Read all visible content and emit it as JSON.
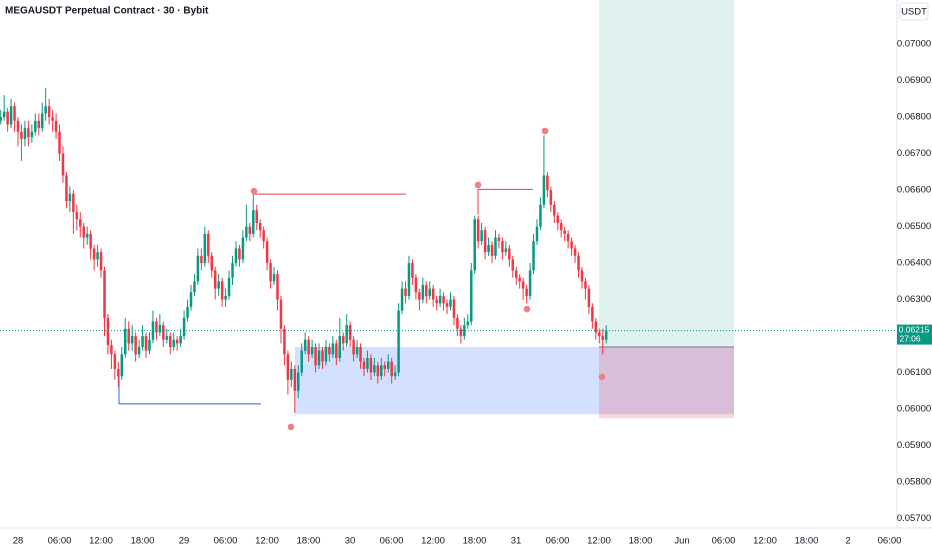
{
  "chart_data": {
    "type": "candlestick",
    "title": "MEGAUSDT Perpetual Contract · 30 · Bybit",
    "currency": "USDT",
    "countdown": "27:06",
    "last_price": 0.06215,
    "up_color": "#089981",
    "down_color": "#f23645",
    "ylim": [
      0.05674,
      0.07121
    ],
    "yticks": [
      {
        "value": 0.07,
        "label": "0.07000"
      },
      {
        "value": 0.069,
        "label": "0.06900"
      },
      {
        "value": 0.068,
        "label": "0.06800"
      },
      {
        "value": 0.067,
        "label": "0.06700"
      },
      {
        "value": 0.066,
        "label": "0.06600"
      },
      {
        "value": 0.065,
        "label": "0.06500"
      },
      {
        "value": 0.064,
        "label": "0.06400"
      },
      {
        "value": 0.063,
        "label": "0.06300"
      },
      {
        "value": 0.062,
        "label": "0.06200"
      },
      {
        "value": 0.061,
        "label": "0.06100"
      },
      {
        "value": 0.06,
        "label": "0.06000"
      },
      {
        "value": 0.059,
        "label": "0.05900"
      },
      {
        "value": 0.058,
        "label": "0.05800"
      },
      {
        "value": 0.057,
        "label": "0.05700"
      }
    ],
    "x_labels": [
      "28",
      "06:00",
      "12:00",
      "18:00",
      "29",
      "06:00",
      "12:00",
      "18:00",
      "30",
      "06:00",
      "12:00",
      "18:00",
      "31",
      "06:00",
      "12:00",
      "18:00",
      "Jun",
      "06:00",
      "12:00",
      "18:00",
      "2",
      "06:00"
    ],
    "zones": [
      {
        "name": "demand",
        "color": "#2962ff",
        "low": 0.05986,
        "high": 0.0617
      },
      {
        "name": "target",
        "color": "#089981",
        "low": 0.0617,
        "high": 0.07121
      },
      {
        "name": "stop",
        "color": "#f23645",
        "low": 0.05975,
        "high": 0.0617
      }
    ],
    "levels": [
      {
        "color": "#f23645",
        "price": 0.06589
      },
      {
        "color": "#2962ff",
        "price": 0.06014
      },
      {
        "color": "#f23645",
        "price": 0.06602
      }
    ],
    "markers": [
      0.06597,
      0.06614,
      0.06762,
      0.06274,
      0.05951,
      0.06088
    ],
    "marker_color": "#f07f84",
    "candles": [
      [
        0.0679,
        0.0682,
        0.0678,
        0.068
      ],
      [
        0.068,
        0.0686,
        0.0679,
        0.06815
      ],
      [
        0.06815,
        0.06825,
        0.0676,
        0.0678
      ],
      [
        0.0678,
        0.0685,
        0.0677,
        0.0683
      ],
      [
        0.0683,
        0.0684,
        0.0676,
        0.0679
      ],
      [
        0.0679,
        0.068,
        0.0672,
        0.0676
      ],
      [
        0.0676,
        0.0678,
        0.0668,
        0.0674
      ],
      [
        0.0674,
        0.0679,
        0.0672,
        0.0677
      ],
      [
        0.0677,
        0.0679,
        0.0672,
        0.06745
      ],
      [
        0.06745,
        0.0678,
        0.0673,
        0.0676
      ],
      [
        0.0676,
        0.0681,
        0.0675,
        0.0679
      ],
      [
        0.0679,
        0.0681,
        0.0675,
        0.0677
      ],
      [
        0.0677,
        0.0684,
        0.0676,
        0.0681
      ],
      [
        0.0681,
        0.0688,
        0.0679,
        0.0683
      ],
      [
        0.0683,
        0.0685,
        0.0678,
        0.068
      ],
      [
        0.068,
        0.0682,
        0.0676,
        0.0679
      ],
      [
        0.0679,
        0.0681,
        0.0674,
        0.0676
      ],
      [
        0.0676,
        0.0678,
        0.0668,
        0.067
      ],
      [
        0.067,
        0.0672,
        0.0662,
        0.0664
      ],
      [
        0.0664,
        0.0665,
        0.0655,
        0.0657
      ],
      [
        0.0657,
        0.0661,
        0.0654,
        0.0659
      ],
      [
        0.0659,
        0.066,
        0.0648,
        0.0654
      ],
      [
        0.0654,
        0.0656,
        0.0649,
        0.0652
      ],
      [
        0.0652,
        0.0654,
        0.0647,
        0.065
      ],
      [
        0.065,
        0.0651,
        0.0644,
        0.0647
      ],
      [
        0.0647,
        0.065,
        0.0645,
        0.0648
      ],
      [
        0.0648,
        0.0649,
        0.0641,
        0.0644
      ],
      [
        0.0644,
        0.0645,
        0.0638,
        0.0641
      ],
      [
        0.0641,
        0.0645,
        0.0639,
        0.0643
      ],
      [
        0.0643,
        0.0644,
        0.0636,
        0.0638
      ],
      [
        0.0638,
        0.0639,
        0.062,
        0.0625
      ],
      [
        0.0625,
        0.0626,
        0.0615,
        0.06175
      ],
      [
        0.06175,
        0.0619,
        0.0611,
        0.0615
      ],
      [
        0.0615,
        0.0616,
        0.0608,
        0.0611
      ],
      [
        0.0611,
        0.0613,
        0.0606,
        0.0609
      ],
      [
        0.0609,
        0.0617,
        0.0608,
        0.0615
      ],
      [
        0.0615,
        0.0625,
        0.0614,
        0.0622
      ],
      [
        0.0622,
        0.0624,
        0.0616,
        0.0618
      ],
      [
        0.0618,
        0.0623,
        0.0616,
        0.062
      ],
      [
        0.062,
        0.0621,
        0.0613,
        0.0615
      ],
      [
        0.0615,
        0.0619,
        0.0614,
        0.0617
      ],
      [
        0.0617,
        0.0623,
        0.0616,
        0.062
      ],
      [
        0.062,
        0.0621,
        0.0614,
        0.0616
      ],
      [
        0.0616,
        0.0621,
        0.0615,
        0.0619
      ],
      [
        0.0619,
        0.0627,
        0.0618,
        0.0624
      ],
      [
        0.0624,
        0.0625,
        0.0619,
        0.0621
      ],
      [
        0.0621,
        0.0626,
        0.062,
        0.0623
      ],
      [
        0.0623,
        0.0624,
        0.0617,
        0.0619
      ],
      [
        0.0619,
        0.0622,
        0.0618,
        0.062
      ],
      [
        0.062,
        0.0621,
        0.0615,
        0.0617
      ],
      [
        0.0617,
        0.0621,
        0.0616,
        0.0619
      ],
      [
        0.0619,
        0.062,
        0.0616,
        0.0618
      ],
      [
        0.0618,
        0.0622,
        0.0617,
        0.062
      ],
      [
        0.062,
        0.0627,
        0.0619,
        0.0625
      ],
      [
        0.0625,
        0.063,
        0.0624,
        0.0628
      ],
      [
        0.0628,
        0.0634,
        0.0627,
        0.0632
      ],
      [
        0.0632,
        0.0637,
        0.0631,
        0.0635
      ],
      [
        0.0635,
        0.0644,
        0.0634,
        0.0642
      ],
      [
        0.0642,
        0.0644,
        0.0638,
        0.064
      ],
      [
        0.064,
        0.065,
        0.0639,
        0.0648
      ],
      [
        0.0648,
        0.0649,
        0.064,
        0.0642
      ],
      [
        0.0642,
        0.0643,
        0.0636,
        0.0638
      ],
      [
        0.0638,
        0.0639,
        0.063,
        0.0633
      ],
      [
        0.0633,
        0.0637,
        0.0631,
        0.0635
      ],
      [
        0.0635,
        0.0636,
        0.0628,
        0.063
      ],
      [
        0.063,
        0.0633,
        0.0628,
        0.0631
      ],
      [
        0.0631,
        0.0638,
        0.063,
        0.0636
      ],
      [
        0.0636,
        0.0642,
        0.0634,
        0.064
      ],
      [
        0.064,
        0.0646,
        0.0639,
        0.0644
      ],
      [
        0.0644,
        0.0645,
        0.0639,
        0.0641
      ],
      [
        0.0641,
        0.0649,
        0.064,
        0.0647
      ],
      [
        0.0647,
        0.0656,
        0.0646,
        0.065
      ],
      [
        0.065,
        0.0651,
        0.0646,
        0.0648
      ],
      [
        0.0648,
        0.066,
        0.0647,
        0.06545
      ],
      [
        0.06545,
        0.0656,
        0.0649,
        0.0651
      ],
      [
        0.0651,
        0.0652,
        0.0647,
        0.0649
      ],
      [
        0.0649,
        0.065,
        0.0644,
        0.0646
      ],
      [
        0.0646,
        0.0647,
        0.0638,
        0.064
      ],
      [
        0.064,
        0.0641,
        0.0633,
        0.0635
      ],
      [
        0.0635,
        0.0639,
        0.0634,
        0.0637
      ],
      [
        0.0637,
        0.0638,
        0.0627,
        0.063
      ],
      [
        0.063,
        0.0631,
        0.0618,
        0.0622
      ],
      [
        0.0622,
        0.0623,
        0.0612,
        0.0615
      ],
      [
        0.0615,
        0.0616,
        0.0604,
        0.0608
      ],
      [
        0.0608,
        0.0613,
        0.0606,
        0.0611
      ],
      [
        0.0611,
        0.0612,
        0.0599,
        0.0605
      ],
      [
        0.0605,
        0.0612,
        0.0603,
        0.061
      ],
      [
        0.061,
        0.0618,
        0.0609,
        0.0616
      ],
      [
        0.0616,
        0.0621,
        0.0615,
        0.0619
      ],
      [
        0.0619,
        0.062,
        0.0613,
        0.0615
      ],
      [
        0.0615,
        0.0619,
        0.0614,
        0.0617
      ],
      [
        0.0617,
        0.0618,
        0.061,
        0.0612
      ],
      [
        0.0612,
        0.0618,
        0.0611,
        0.0616
      ],
      [
        0.0616,
        0.0617,
        0.0611,
        0.0613
      ],
      [
        0.0613,
        0.0619,
        0.0612,
        0.0617
      ],
      [
        0.0617,
        0.0618,
        0.0613,
        0.0615
      ],
      [
        0.0615,
        0.062,
        0.0614,
        0.0618
      ],
      [
        0.0618,
        0.0619,
        0.0612,
        0.0614
      ],
      [
        0.0614,
        0.0625,
        0.0613,
        0.062
      ],
      [
        0.062,
        0.0621,
        0.0616,
        0.0618
      ],
      [
        0.0618,
        0.0626,
        0.0617,
        0.0623
      ],
      [
        0.0623,
        0.0624,
        0.0617,
        0.0619
      ],
      [
        0.0619,
        0.062,
        0.0613,
        0.0615
      ],
      [
        0.0615,
        0.0619,
        0.0614,
        0.0617
      ],
      [
        0.0617,
        0.0618,
        0.0611,
        0.0613
      ],
      [
        0.0613,
        0.0614,
        0.0609,
        0.0611
      ],
      [
        0.0611,
        0.0616,
        0.061,
        0.0614
      ],
      [
        0.0614,
        0.0615,
        0.0608,
        0.061
      ],
      [
        0.061,
        0.0614,
        0.0609,
        0.0612
      ],
      [
        0.0612,
        0.0613,
        0.0607,
        0.0609
      ],
      [
        0.0609,
        0.0614,
        0.0608,
        0.0612
      ],
      [
        0.0612,
        0.0613,
        0.0609,
        0.0611
      ],
      [
        0.0611,
        0.0615,
        0.061,
        0.0613
      ],
      [
        0.0613,
        0.0614,
        0.0607,
        0.0609
      ],
      [
        0.0609,
        0.0612,
        0.0608,
        0.061
      ],
      [
        0.061,
        0.0629,
        0.0609,
        0.0627
      ],
      [
        0.0627,
        0.0635,
        0.0626,
        0.0633
      ],
      [
        0.0633,
        0.0635,
        0.0629,
        0.0631
      ],
      [
        0.0631,
        0.0642,
        0.063,
        0.064
      ],
      [
        0.064,
        0.0641,
        0.0634,
        0.0636
      ],
      [
        0.0636,
        0.0637,
        0.063,
        0.0632
      ],
      [
        0.0632,
        0.0633,
        0.0627,
        0.063
      ],
      [
        0.063,
        0.0636,
        0.0629,
        0.0634
      ],
      [
        0.0634,
        0.0635,
        0.0629,
        0.0631
      ],
      [
        0.0631,
        0.0635,
        0.063,
        0.0633
      ],
      [
        0.0633,
        0.0634,
        0.0628,
        0.063
      ],
      [
        0.063,
        0.0631,
        0.0627,
        0.0629
      ],
      [
        0.0629,
        0.0633,
        0.0628,
        0.0631
      ],
      [
        0.0631,
        0.0632,
        0.0627,
        0.0629
      ],
      [
        0.0629,
        0.063,
        0.0626,
        0.0628
      ],
      [
        0.0628,
        0.0632,
        0.0627,
        0.063
      ],
      [
        0.063,
        0.0631,
        0.0623,
        0.0625
      ],
      [
        0.0625,
        0.0626,
        0.062,
        0.0622
      ],
      [
        0.0622,
        0.0623,
        0.0618,
        0.062
      ],
      [
        0.062,
        0.0625,
        0.0619,
        0.0623
      ],
      [
        0.0623,
        0.0626,
        0.0622,
        0.0624
      ],
      [
        0.0624,
        0.064,
        0.0623,
        0.0638
      ],
      [
        0.0638,
        0.0653,
        0.0637,
        0.0652
      ],
      [
        0.0652,
        0.0653,
        0.0644,
        0.0646
      ],
      [
        0.0646,
        0.0651,
        0.0645,
        0.0649
      ],
      [
        0.0649,
        0.065,
        0.0641,
        0.0643
      ],
      [
        0.0643,
        0.0647,
        0.0642,
        0.0645
      ],
      [
        0.0645,
        0.0646,
        0.064,
        0.0642
      ],
      [
        0.0642,
        0.0649,
        0.0641,
        0.0647
      ],
      [
        0.0647,
        0.0648,
        0.0644,
        0.0646
      ],
      [
        0.0646,
        0.0647,
        0.0641,
        0.0643
      ],
      [
        0.0643,
        0.0646,
        0.0642,
        0.0644
      ],
      [
        0.0644,
        0.0645,
        0.0639,
        0.0641
      ],
      [
        0.0641,
        0.0642,
        0.0636,
        0.0638
      ],
      [
        0.0638,
        0.0639,
        0.0634,
        0.0636
      ],
      [
        0.0636,
        0.0637,
        0.0633,
        0.0635
      ],
      [
        0.0635,
        0.0636,
        0.063,
        0.0633
      ],
      [
        0.0633,
        0.0634,
        0.0629,
        0.0631
      ],
      [
        0.0631,
        0.064,
        0.063,
        0.0638
      ],
      [
        0.0638,
        0.0648,
        0.0637,
        0.0646
      ],
      [
        0.0646,
        0.0652,
        0.0645,
        0.065
      ],
      [
        0.065,
        0.0658,
        0.0649,
        0.0656
      ],
      [
        0.0656,
        0.0675,
        0.0655,
        0.0664
      ],
      [
        0.0664,
        0.0665,
        0.0658,
        0.066
      ],
      [
        0.066,
        0.0661,
        0.0654,
        0.0656
      ],
      [
        0.0656,
        0.0657,
        0.0651,
        0.0653
      ],
      [
        0.0653,
        0.0654,
        0.0649,
        0.0651
      ],
      [
        0.0651,
        0.0652,
        0.0647,
        0.0649
      ],
      [
        0.0649,
        0.065,
        0.0646,
        0.0648
      ],
      [
        0.0648,
        0.0649,
        0.0644,
        0.0646
      ],
      [
        0.0646,
        0.0647,
        0.0642,
        0.0644
      ],
      [
        0.0644,
        0.0645,
        0.064,
        0.0642
      ],
      [
        0.0642,
        0.0643,
        0.0636,
        0.0638
      ],
      [
        0.0638,
        0.0639,
        0.0633,
        0.0635
      ],
      [
        0.0635,
        0.0636,
        0.063,
        0.0633
      ],
      [
        0.0633,
        0.0634,
        0.0626,
        0.0628
      ],
      [
        0.0628,
        0.0629,
        0.0622,
        0.0624
      ],
      [
        0.0624,
        0.0625,
        0.0619,
        0.0621
      ],
      [
        0.0621,
        0.0622,
        0.0618,
        0.062
      ],
      [
        0.062,
        0.0622,
        0.0615,
        0.0619
      ],
      [
        0.0619,
        0.0623,
        0.0618,
        0.06215
      ]
    ]
  }
}
